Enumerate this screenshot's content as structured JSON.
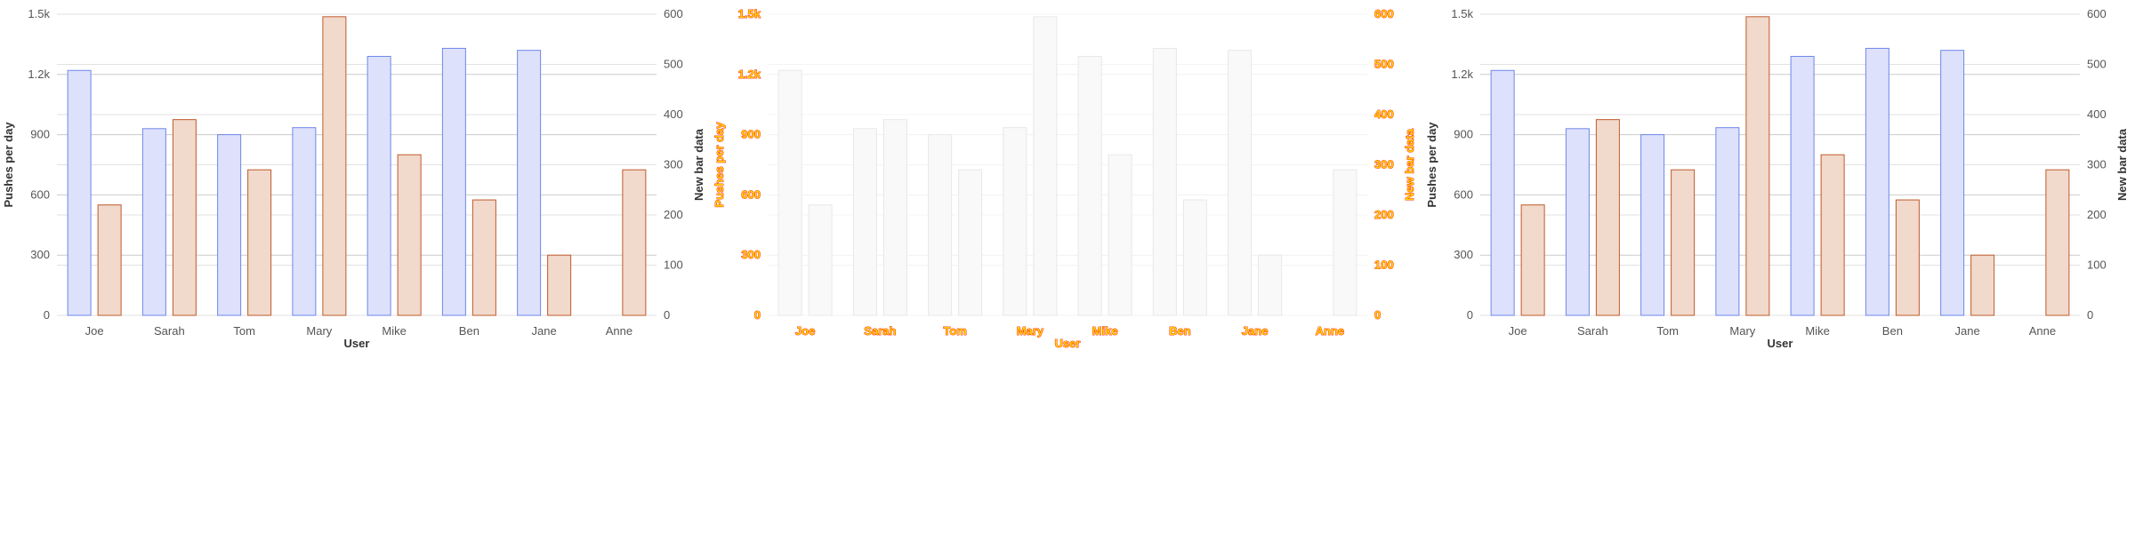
{
  "colors": {
    "series_pushes_fill": "#dde1fb",
    "series_pushes_stroke": "#6f86e8",
    "series_new_fill": "#f1d9cb",
    "series_new_stroke": "#bf5a2b",
    "grid": "#cccccc",
    "ghost_fill": "#f9f9f9",
    "ghost_stroke": "#e8e8e8"
  },
  "chart_data": [
    {
      "type": "bar",
      "title": "",
      "categories": [
        "Joe",
        "Sarah",
        "Tom",
        "Mary",
        "Mike",
        "Ben",
        "Jane",
        "Anne"
      ],
      "series": [
        {
          "name": "Pushes per day",
          "axis": "left",
          "values": [
            1220,
            930,
            900,
            935,
            1290,
            1330,
            1320,
            null
          ]
        },
        {
          "name": "New bar data",
          "axis": "right",
          "values": [
            220,
            390,
            290,
            595,
            320,
            230,
            120,
            290
          ]
        }
      ],
      "xlabel": "User",
      "ylabel_left": "Pushes per day",
      "ylabel_right": "New bar data",
      "ylim_left": [
        0,
        1500
      ],
      "ylim_right": [
        0,
        600
      ],
      "yticks_left": [
        "0",
        "300",
        "600",
        "900",
        "1.2k",
        "1.5k"
      ],
      "yticks_right": [
        "0",
        "100",
        "200",
        "300",
        "400",
        "500",
        "600"
      ],
      "grid": true,
      "style": "normal"
    },
    {
      "type": "bar",
      "title": "",
      "categories": [
        "Joe",
        "Sarah",
        "Tom",
        "Mary",
        "Mike",
        "Ben",
        "Jane",
        "Anne"
      ],
      "series": [
        {
          "name": "Pushes per day",
          "axis": "left",
          "values": [
            1220,
            930,
            900,
            935,
            1290,
            1330,
            1320,
            null
          ]
        },
        {
          "name": "New bar data",
          "axis": "right",
          "values": [
            220,
            390,
            290,
            595,
            320,
            230,
            120,
            290
          ]
        }
      ],
      "xlabel": "User",
      "ylabel_left": "Pushes per day",
      "ylabel_right": "New bar data",
      "ylim_left": [
        0,
        1500
      ],
      "ylim_right": [
        0,
        600
      ],
      "yticks_left": [
        "0",
        "300",
        "600",
        "900",
        "1.2k",
        "1.5k"
      ],
      "yticks_right": [
        "0",
        "100",
        "200",
        "300",
        "400",
        "500",
        "600"
      ],
      "grid": true,
      "style": "ghost"
    },
    {
      "type": "bar",
      "title": "",
      "categories": [
        "Joe",
        "Sarah",
        "Tom",
        "Mary",
        "Mike",
        "Ben",
        "Jane",
        "Anne"
      ],
      "series": [
        {
          "name": "Pushes per day",
          "axis": "left",
          "values": [
            1220,
            930,
            900,
            935,
            1290,
            1330,
            1320,
            null
          ]
        },
        {
          "name": "New bar data",
          "axis": "right",
          "values": [
            220,
            390,
            290,
            595,
            320,
            230,
            120,
            290
          ]
        }
      ],
      "xlabel": "User",
      "ylabel_left": "Pushes per day",
      "ylabel_right": "New bar data",
      "ylim_left": [
        0,
        1500
      ],
      "ylim_right": [
        0,
        600
      ],
      "yticks_left": [
        "0",
        "300",
        "600",
        "900",
        "1.2k",
        "1.5k"
      ],
      "yticks_right": [
        "0",
        "100",
        "200",
        "300",
        "400",
        "500",
        "600"
      ],
      "grid": true,
      "style": "normal"
    }
  ]
}
